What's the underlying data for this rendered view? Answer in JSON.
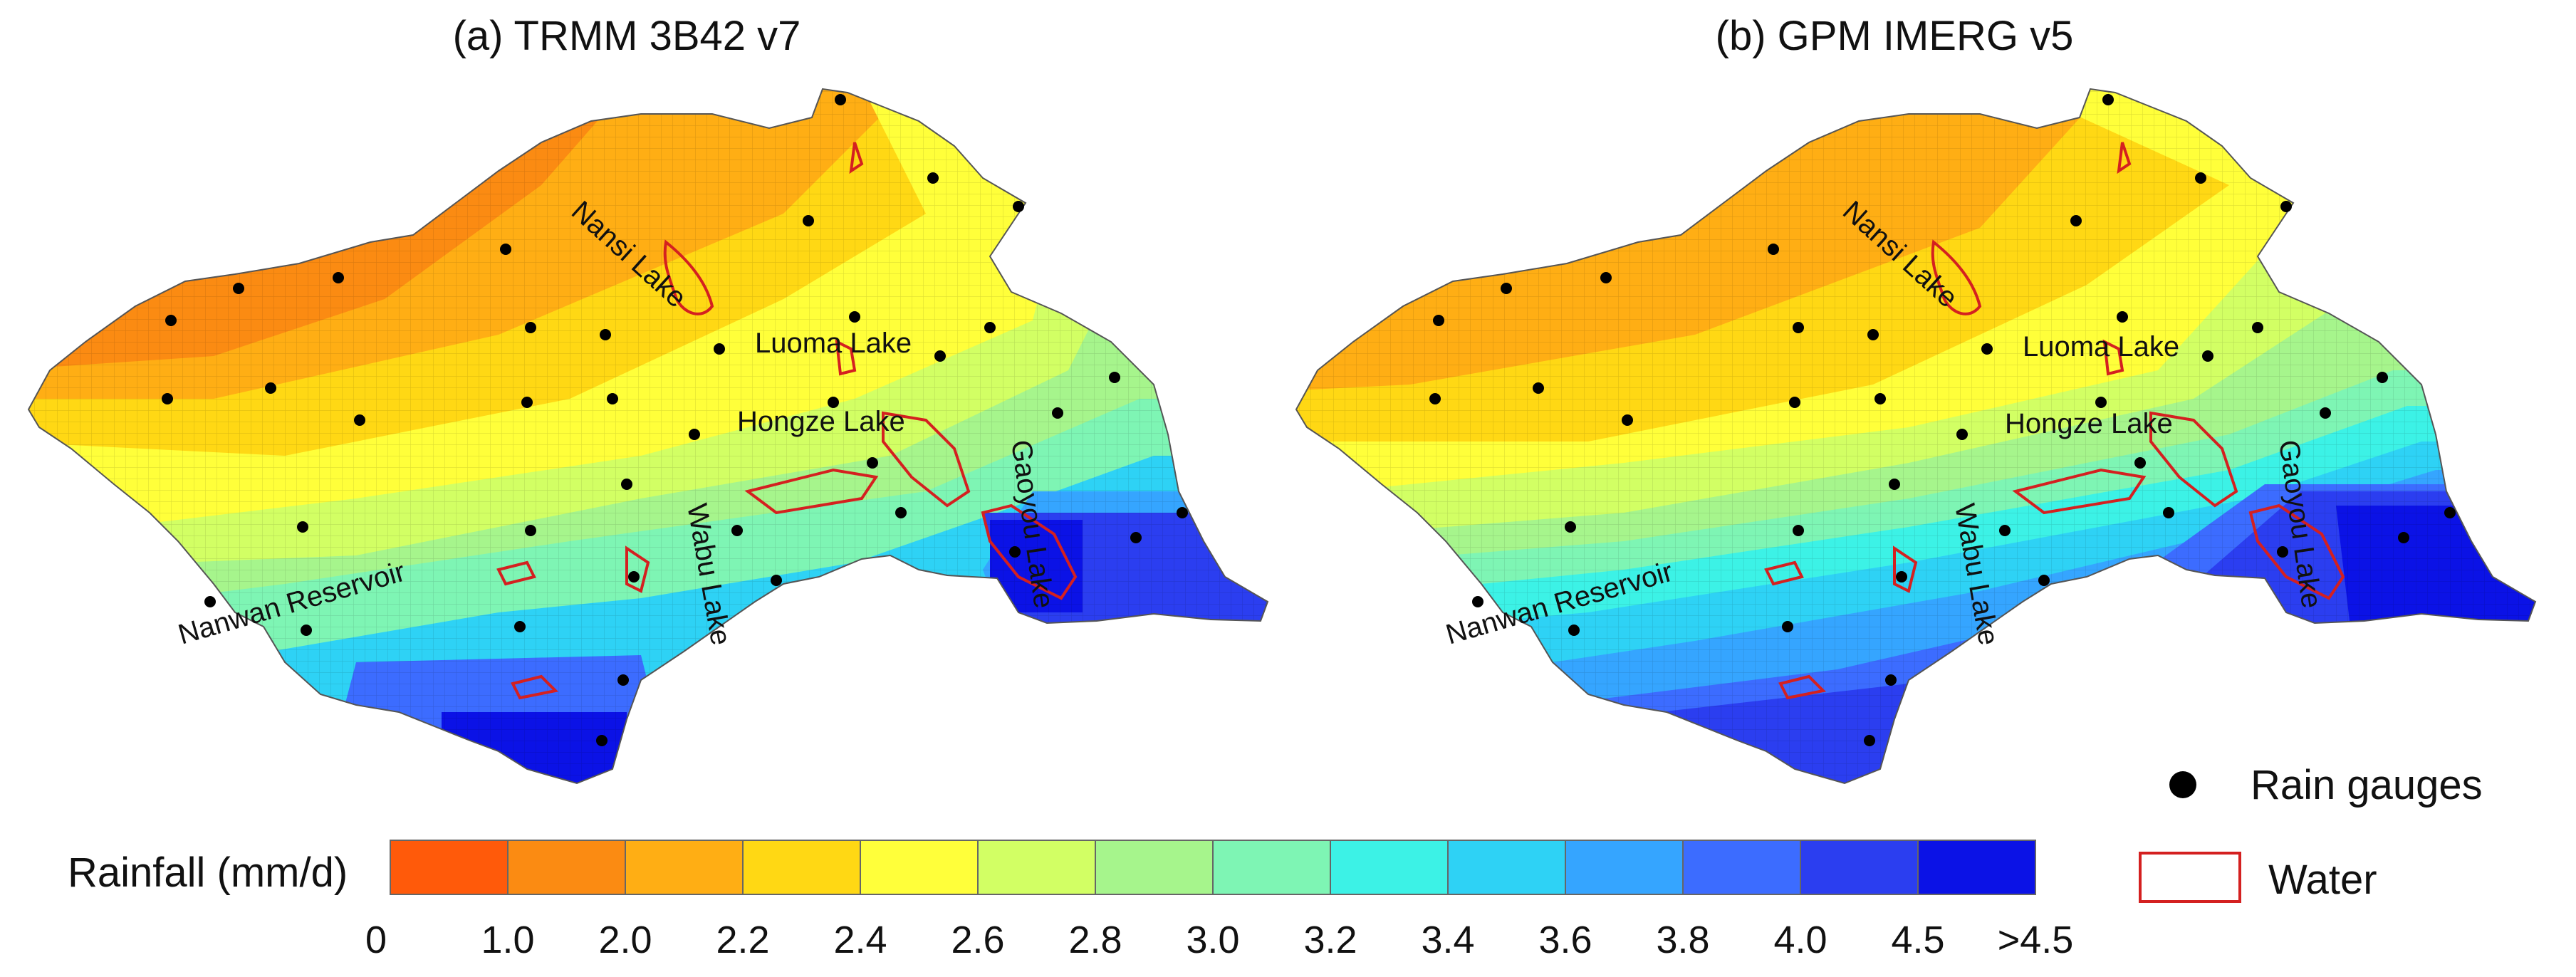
{
  "panels": [
    {
      "id": "a",
      "title": "(a) TRMM 3B42 v7",
      "labels": [
        "Nansi Lake",
        "Luoma Lake",
        "Hongze Lake",
        "Gaoyou Lake",
        "Wabu Lake",
        "Nanwan Reservoir"
      ]
    },
    {
      "id": "b",
      "title": "(b) GPM IMERG v5",
      "labels": [
        "Nansi Lake",
        "Luoma Lake",
        "Hongze Lake",
        "Gaoyou Lake",
        "Wabu Lake",
        "Nanwan Reservoir"
      ]
    }
  ],
  "colorbar": {
    "label": "Rainfall (mm/d)",
    "ticks": [
      "0",
      "1.0",
      "2.0",
      "2.2",
      "2.4",
      "2.6",
      "2.8",
      "3.0",
      "3.2",
      "3.4",
      "3.6",
      "3.8",
      "4.0",
      "4.5",
      ">4.5"
    ],
    "colors": [
      "#ff5a0a",
      "#fb8b12",
      "#ffae14",
      "#ffd814",
      "#ffff3a",
      "#d2ff64",
      "#a6f58c",
      "#7ef5b4",
      "#3cf2e6",
      "#2ed2f5",
      "#35a5ff",
      "#3c6cff",
      "#2b3ef0",
      "#0b12e6"
    ]
  },
  "legend": {
    "gauges_label": "Rain gauges",
    "water_label": "Water",
    "gauge_color": "#000000",
    "water_color": "#d42020"
  }
}
